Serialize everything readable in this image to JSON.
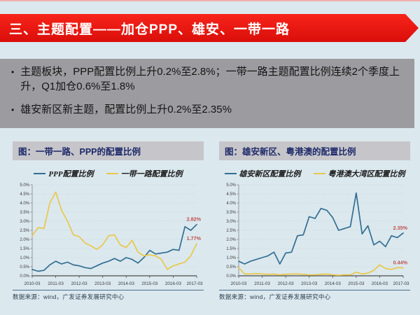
{
  "colors": {
    "background": "#dbe8ee",
    "banner_red": "#e8130e",
    "summary_gray": "#9c9ca0",
    "panel_title_gray": "#c6c6ca",
    "navy_text": "#1e2a6a",
    "blue_line": "#336f92",
    "yellow_line": "#e9c84b",
    "data_label_red": "#bf4e4b"
  },
  "header": {
    "title": "三、主题配置——加仓PPP、雄安、一带一路"
  },
  "bullets": [
    "主题板块，PPP配置比例上升0.2%至2.8%；一带一路主题配置比例连续2个季度上升，Q1加仓0.6%至1.8%",
    "雄安新区新主题，配置比例上升0.2%至2.35%"
  ],
  "chart_data": [
    {
      "type": "line",
      "title": "图：一带一路、PPP的配置比例",
      "legend_position": "top",
      "grid": true,
      "categories": [
        "2010-03",
        "2010-06",
        "2010-09",
        "2010-12",
        "2011-03",
        "2011-06",
        "2011-09",
        "2011-12",
        "2012-03",
        "2012-06",
        "2012-09",
        "2012-12",
        "2013-03",
        "2013-06",
        "2013-09",
        "2013-12",
        "2014-03",
        "2014-06",
        "2014-09",
        "2014-12",
        "2015-03",
        "2015-06",
        "2015-09",
        "2015-12",
        "2016-03",
        "2016-06",
        "2016-09",
        "2016-12",
        "2017-03"
      ],
      "x_tick_labels": [
        "2010-03",
        "2011-03",
        "2012-03",
        "2013-03",
        "2014-03",
        "2015-03",
        "2016-03",
        "2017-03"
      ],
      "ylim": [
        0,
        5
      ],
      "ytick_step": 0.5,
      "yticks": [
        "0.0%",
        "0.5%",
        "1.0%",
        "1.5%",
        "2.0%",
        "2.5%",
        "3.0%",
        "3.5%",
        "4.0%",
        "4.5%",
        "5.0%"
      ],
      "series": [
        {
          "name": "PPP配置比例",
          "color": "#336f92",
          "end_label": "2.82%",
          "values": [
            0.35,
            0.25,
            0.3,
            0.6,
            0.8,
            0.65,
            0.75,
            0.6,
            0.55,
            0.45,
            0.4,
            0.55,
            0.7,
            0.8,
            0.95,
            0.8,
            1.0,
            0.9,
            0.7,
            1.0,
            1.4,
            1.2,
            1.25,
            1.3,
            1.45,
            1.4,
            2.7,
            2.5,
            2.82
          ]
        },
        {
          "name": "一带一路配置比例",
          "color": "#e9c84b",
          "end_label": "1.77%",
          "values": [
            2.2,
            2.65,
            2.6,
            4.0,
            4.6,
            3.6,
            3.0,
            2.25,
            2.15,
            1.8,
            1.65,
            1.45,
            1.7,
            2.2,
            2.25,
            1.7,
            1.55,
            1.95,
            1.3,
            1.1,
            1.15,
            1.1,
            0.9,
            0.35,
            0.55,
            0.65,
            0.75,
            1.1,
            1.77
          ]
        }
      ],
      "source": "数据来源：wind，广发证券发展研究中心"
    },
    {
      "type": "line",
      "title": "图：雄安新区、粤港澳的配置比例",
      "legend_position": "top",
      "grid": true,
      "categories": [
        "2010-03",
        "2010-06",
        "2010-09",
        "2010-12",
        "2011-03",
        "2011-06",
        "2011-09",
        "2011-12",
        "2012-03",
        "2012-06",
        "2012-09",
        "2012-12",
        "2013-03",
        "2013-06",
        "2013-09",
        "2013-12",
        "2014-03",
        "2014-06",
        "2014-09",
        "2014-12",
        "2015-03",
        "2015-06",
        "2015-09",
        "2015-12",
        "2016-03",
        "2016-06",
        "2016-09",
        "2016-12",
        "2017-03"
      ],
      "x_tick_labels": [
        "2010-03",
        "2011-03",
        "2012-03",
        "2013-03",
        "2014-03",
        "2015-03",
        "2016-03",
        "2017-03"
      ],
      "ylim": [
        0,
        5
      ],
      "ytick_step": 0.5,
      "yticks": [
        "0.0%",
        "0.5%",
        "1.0%",
        "1.5%",
        "2.0%",
        "2.5%",
        "3.0%",
        "3.5%",
        "4.0%",
        "4.5%",
        "5.0%"
      ],
      "series": [
        {
          "name": "雄安新区配置比例",
          "color": "#336f92",
          "end_label": "2.35%",
          "values": [
            0.8,
            0.65,
            0.8,
            0.9,
            1.0,
            1.1,
            1.3,
            0.65,
            1.25,
            1.3,
            2.2,
            2.25,
            3.25,
            3.15,
            3.7,
            3.6,
            3.2,
            2.5,
            2.6,
            2.7,
            4.55,
            2.3,
            2.75,
            1.7,
            1.9,
            1.6,
            2.2,
            2.1,
            2.35
          ]
        },
        {
          "name": "粤港澳大湾区配置比例",
          "color": "#e9c84b",
          "end_label": "0.44%",
          "values": [
            0.45,
            0.1,
            0.1,
            0.12,
            0.1,
            0.08,
            0.1,
            0.05,
            0.08,
            0.1,
            0.1,
            0.08,
            0.05,
            0.05,
            0.08,
            0.1,
            0.05,
            0.03,
            0.05,
            0.05,
            0.2,
            0.1,
            0.15,
            0.3,
            0.6,
            0.4,
            0.35,
            0.45,
            0.44
          ]
        }
      ],
      "source": "数据来源：wind，广发证券发展研究中心"
    }
  ]
}
